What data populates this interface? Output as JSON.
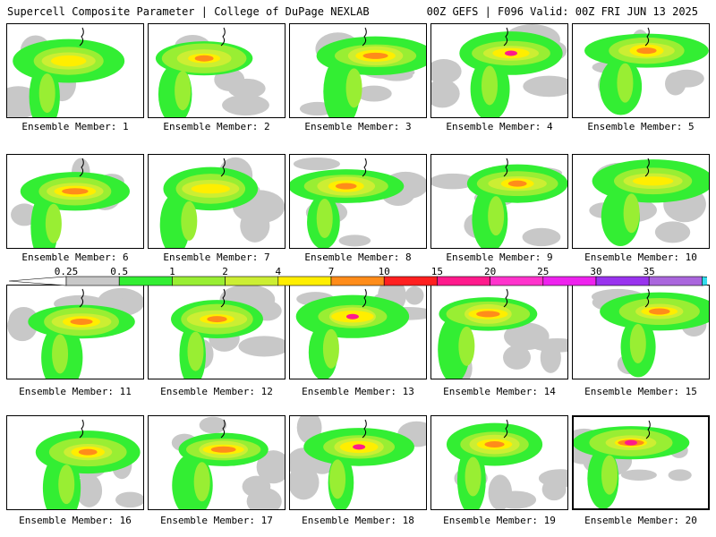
{
  "header": {
    "left": "Supercell Composite Parameter | College of DuPage NEXLAB",
    "right": "00Z GEFS | F096 Valid: 00Z FRI JUN 13 2025"
  },
  "panels": [
    {
      "label": "Ensemble Member: 1"
    },
    {
      "label": "Ensemble Member: 2"
    },
    {
      "label": "Ensemble Member: 3"
    },
    {
      "label": "Ensemble Member: 4"
    },
    {
      "label": "Ensemble Member: 5"
    },
    {
      "label": "Ensemble Member: 6"
    },
    {
      "label": "Ensemble Member: 7"
    },
    {
      "label": "Ensemble Member: 8"
    },
    {
      "label": "Ensemble Member: 9"
    },
    {
      "label": "Ensemble Member: 10"
    },
    {
      "label": "Ensemble Member: 11"
    },
    {
      "label": "Ensemble Member: 12"
    },
    {
      "label": "Ensemble Member: 13"
    },
    {
      "label": "Ensemble Member: 14"
    },
    {
      "label": "Ensemble Member: 15"
    },
    {
      "label": "Ensemble Member: 16"
    },
    {
      "label": "Ensemble Member: 17"
    },
    {
      "label": "Ensemble Member: 18"
    },
    {
      "label": "Ensemble Member: 19"
    },
    {
      "label": "Ensemble Member: 20"
    }
  ],
  "colorbar": {
    "labels": [
      "0.25",
      "0.5",
      "1",
      "2",
      "4",
      "7",
      "10",
      "15",
      "20",
      "25",
      "30",
      "35"
    ],
    "colors": [
      "#c8c8c8",
      "#33ee33",
      "#99ee33",
      "#ccee33",
      "#ffee00",
      "#ff8c1a",
      "#ff2020",
      "#ff1a8c",
      "#ff33cc",
      "#ee22ee",
      "#9933ee",
      "#aa66dd",
      "#33ddee"
    ]
  }
}
